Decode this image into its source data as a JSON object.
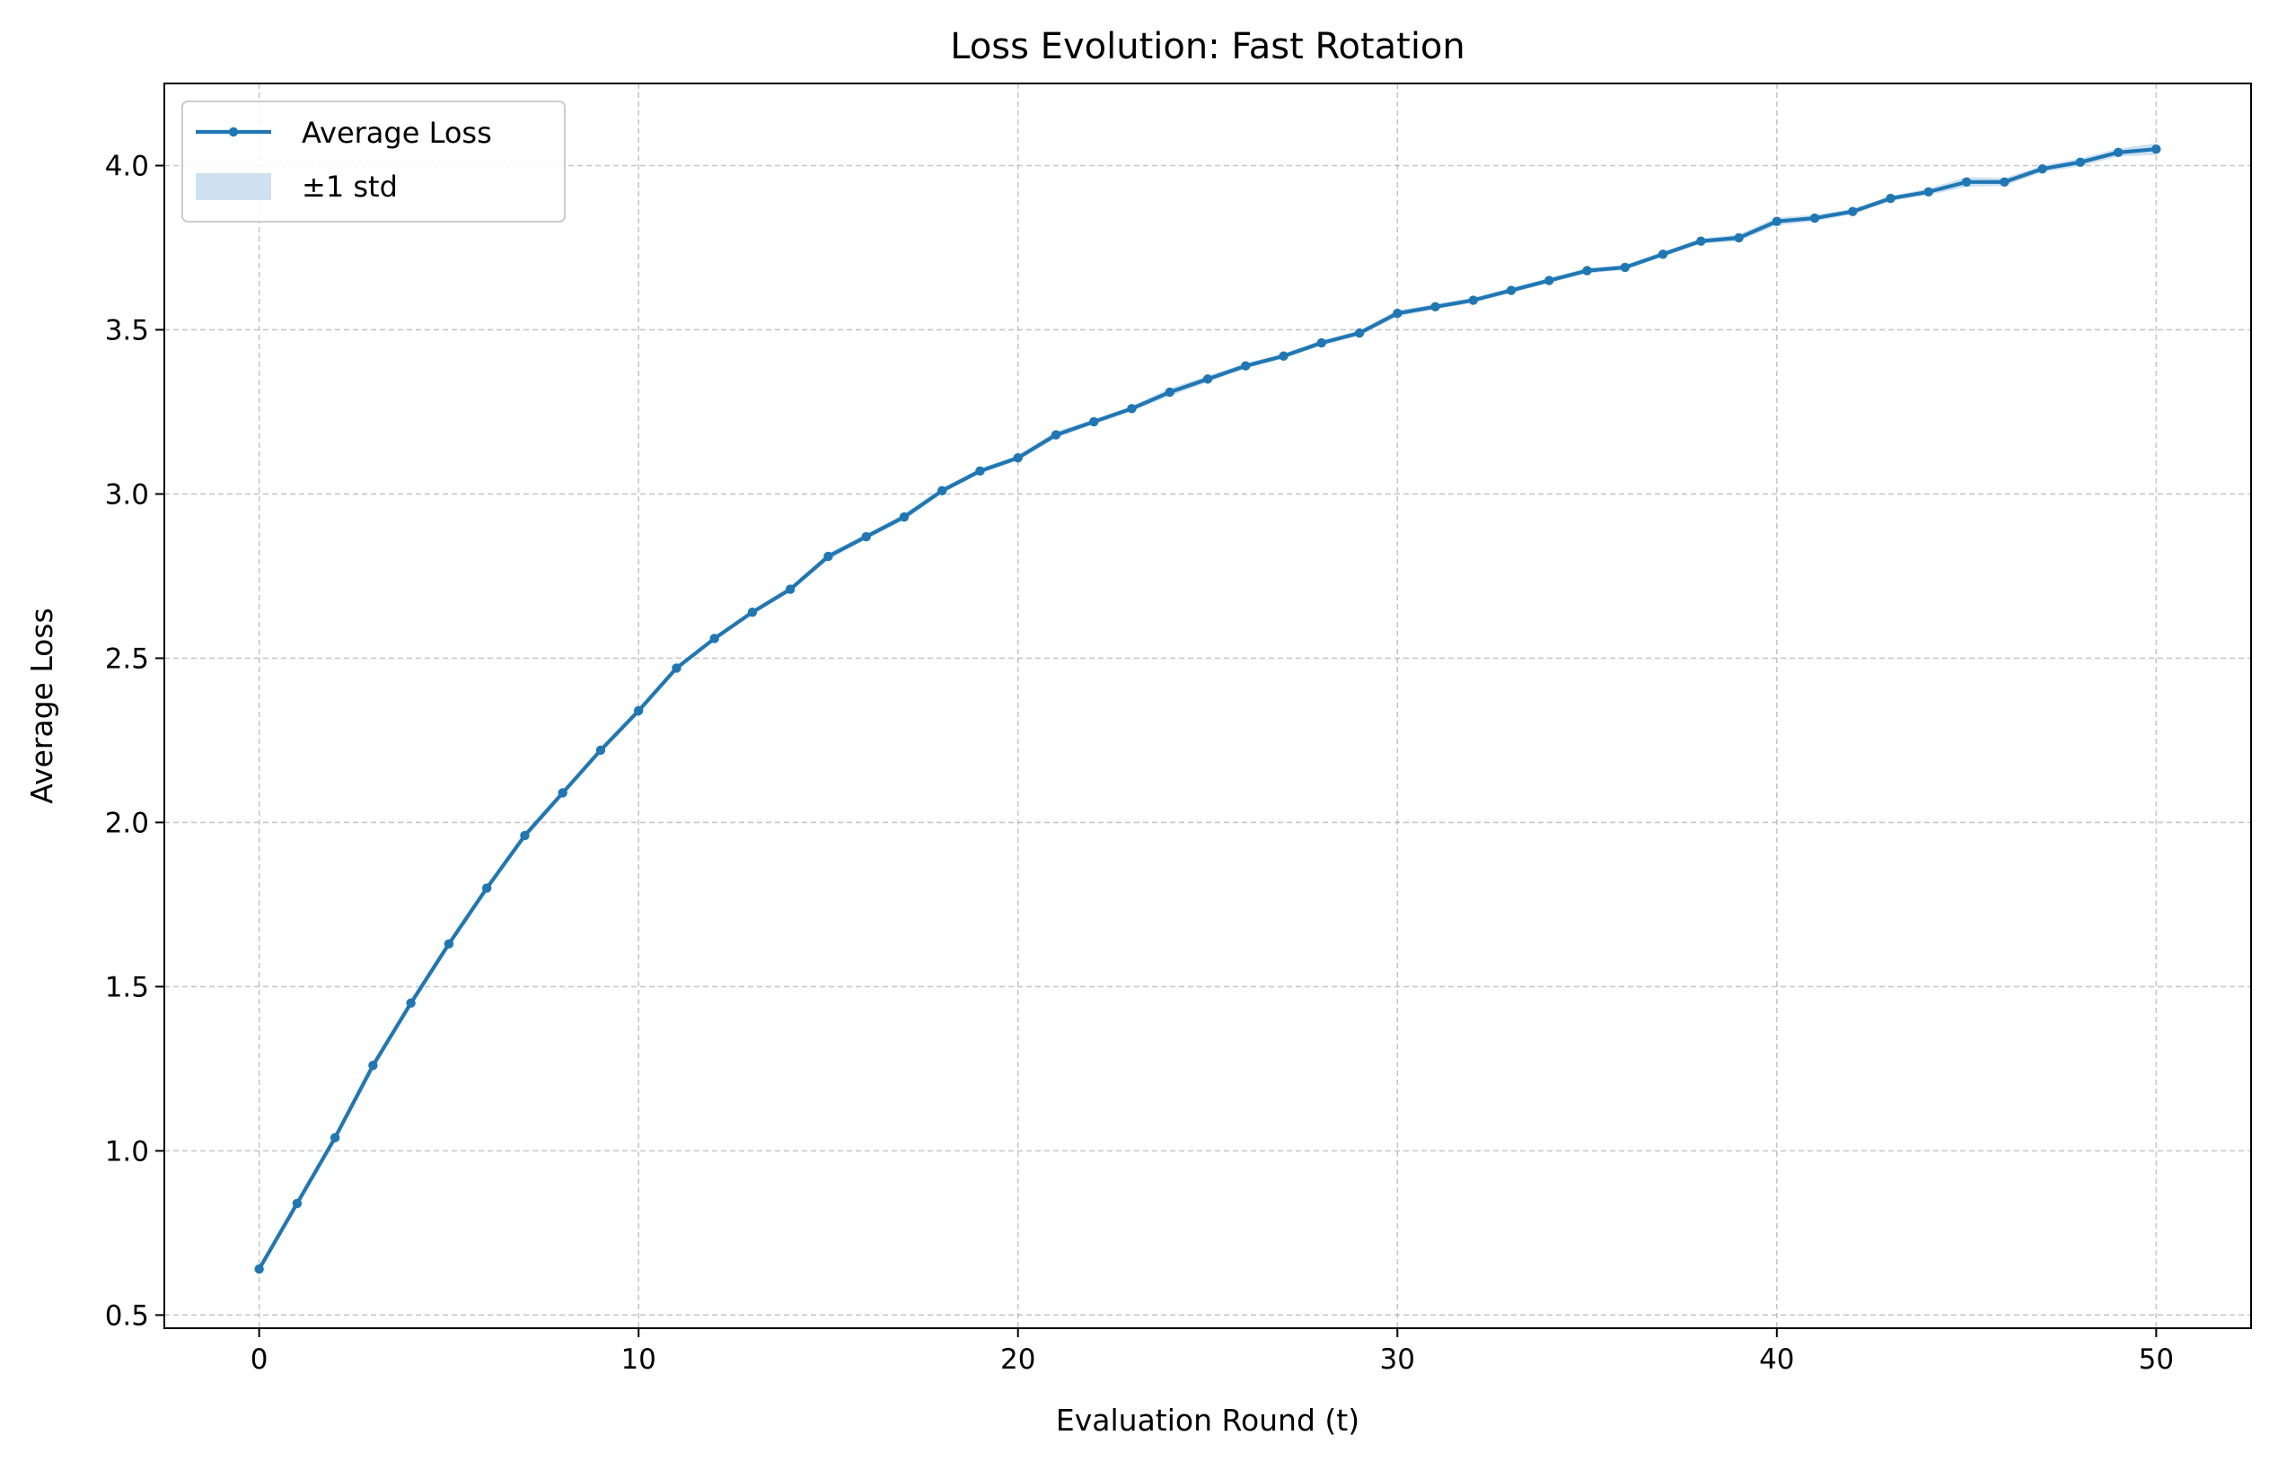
{
  "chart_data": {
    "type": "line",
    "title": "Loss Evolution: Fast Rotation",
    "xlabel": "Evaluation Round (t)",
    "ylabel": "Average Loss",
    "xlim": [
      -2.5,
      52.5
    ],
    "ylim": [
      0.46,
      4.25
    ],
    "x_ticks": [
      0,
      10,
      20,
      30,
      40,
      50
    ],
    "x_tick_labels": [
      "0",
      "10",
      "20",
      "30",
      "40",
      "50"
    ],
    "y_ticks": [
      0.5,
      1.0,
      1.5,
      2.0,
      2.5,
      3.0,
      3.5,
      4.0
    ],
    "y_tick_labels": [
      "0.5",
      "1.0",
      "1.5",
      "2.0",
      "2.5",
      "3.0",
      "3.5",
      "4.0"
    ],
    "grid": true,
    "grid_style": "dashed",
    "legend_position": "top-left",
    "legend": [
      "Average Loss",
      "±1 std"
    ],
    "colors": {
      "line": "#1f77b4",
      "band": "#c6dcee",
      "grid": "#b0b0b0"
    },
    "x": [
      0,
      1,
      2,
      3,
      4,
      5,
      6,
      7,
      8,
      9,
      10,
      11,
      12,
      13,
      14,
      15,
      16,
      17,
      18,
      19,
      20,
      21,
      22,
      23,
      24,
      25,
      26,
      27,
      28,
      29,
      30,
      31,
      32,
      33,
      34,
      35,
      36,
      37,
      38,
      39,
      40,
      41,
      42,
      43,
      44,
      45,
      46,
      47,
      48,
      49,
      50
    ],
    "series": [
      {
        "name": "Average Loss",
        "values": [
          0.64,
          0.84,
          1.04,
          1.26,
          1.45,
          1.63,
          1.8,
          1.96,
          2.09,
          2.22,
          2.34,
          2.47,
          2.56,
          2.64,
          2.71,
          2.81,
          2.87,
          2.93,
          3.01,
          3.07,
          3.11,
          3.18,
          3.22,
          3.26,
          3.31,
          3.35,
          3.39,
          3.42,
          3.46,
          3.49,
          3.55,
          3.57,
          3.59,
          3.62,
          3.65,
          3.68,
          3.69,
          3.73,
          3.77,
          3.78,
          3.83,
          3.84,
          3.86,
          3.9,
          3.92,
          3.95,
          3.95,
          3.99,
          4.01,
          4.04,
          4.05
        ],
        "std": [
          0.004,
          0.004,
          0.004,
          0.005,
          0.005,
          0.005,
          0.005,
          0.005,
          0.006,
          0.006,
          0.006,
          0.006,
          0.007,
          0.007,
          0.007,
          0.01,
          0.008,
          0.01,
          0.008,
          0.008,
          0.008,
          0.01,
          0.008,
          0.008,
          0.012,
          0.01,
          0.008,
          0.008,
          0.008,
          0.008,
          0.01,
          0.008,
          0.008,
          0.008,
          0.008,
          0.008,
          0.008,
          0.008,
          0.008,
          0.01,
          0.012,
          0.01,
          0.008,
          0.008,
          0.01,
          0.015,
          0.012,
          0.01,
          0.012,
          0.012,
          0.018
        ]
      }
    ]
  }
}
